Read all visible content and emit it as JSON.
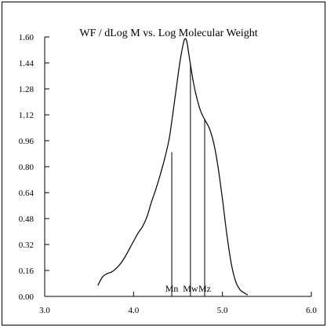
{
  "chart_data": {
    "type": "line",
    "title": "WF / dLog M vs. Log Molecular Weight",
    "xlabel": "",
    "ylabel": "",
    "xlim": [
      3.0,
      6.0
    ],
    "ylim": [
      0.0,
      1.6
    ],
    "xticks": [
      "3.0",
      "4.0",
      "5.0",
      "6.0"
    ],
    "yticks": [
      "0.00",
      "0.16",
      "0.32",
      "0.48",
      "0.64",
      "0.80",
      "0.96",
      "1.12",
      "1.28",
      "1.44",
      "1.60"
    ],
    "grid": false,
    "series": [
      {
        "x": [
          3.6,
          3.65,
          3.7,
          3.75,
          3.8,
          3.85,
          3.9,
          3.95,
          4.0,
          4.05,
          4.1,
          4.15,
          4.2,
          4.25,
          4.3,
          4.35,
          4.4,
          4.44,
          4.48,
          4.52,
          4.56,
          4.58,
          4.6,
          4.62,
          4.64,
          4.67,
          4.7,
          4.75,
          4.8,
          4.85,
          4.9,
          4.95,
          5.0,
          5.05,
          5.1,
          5.15,
          5.2,
          5.25,
          5.28
        ],
        "y": [
          0.07,
          0.12,
          0.14,
          0.15,
          0.17,
          0.2,
          0.24,
          0.29,
          0.34,
          0.39,
          0.43,
          0.49,
          0.58,
          0.66,
          0.75,
          0.85,
          0.97,
          1.12,
          1.28,
          1.44,
          1.56,
          1.59,
          1.57,
          1.5,
          1.43,
          1.33,
          1.25,
          1.15,
          1.09,
          1.04,
          0.95,
          0.8,
          0.6,
          0.38,
          0.2,
          0.09,
          0.04,
          0.02,
          0.01
        ]
      }
    ],
    "markers": [
      {
        "label": "Mn",
        "x": 4.43,
        "y": 0.89
      },
      {
        "label": "Mw",
        "x": 4.64,
        "y": 1.43
      },
      {
        "label": "Mz",
        "x": 4.8,
        "y": 1.09
      }
    ]
  }
}
